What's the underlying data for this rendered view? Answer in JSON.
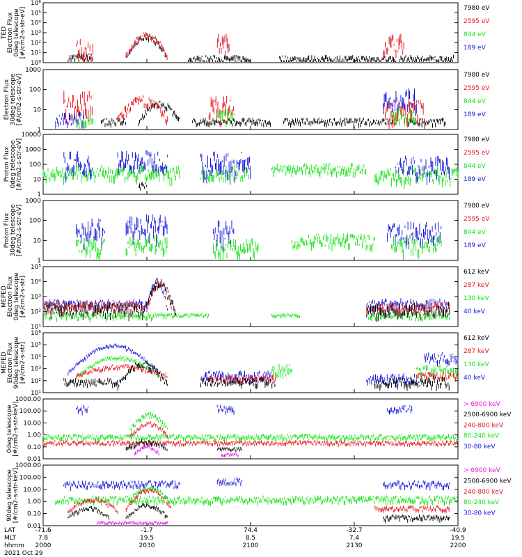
{
  "colors": {
    "black": "#000000",
    "red": "#e8141c",
    "green": "#14e414",
    "blue": "#1414e0",
    "magenta": "#e014e0"
  },
  "x_axis": {
    "row_labels": [
      "LAT",
      "MLT",
      "hhmm"
    ],
    "ticks": [
      {
        "lat": "-71.6",
        "mlt": "7.8",
        "time": "2000"
      },
      {
        "lat": "-1.7",
        "mlt": "19.5",
        "time": "2030"
      },
      {
        "lat": "74.4",
        "mlt": "8.5",
        "time": "2100"
      },
      {
        "lat": "-32.7",
        "mlt": "7.4",
        "time": "2130"
      },
      {
        "lat": "-40.9",
        "mlt": "19.5",
        "time": "2200"
      }
    ],
    "date": "2021 Oct 29"
  },
  "chart_data": [
    {
      "type": "line",
      "ylabel": [
        "TED",
        "Electron Flux",
        "0deg telescope",
        "[#/cm2-s-str-eV]"
      ],
      "log": true,
      "ylim": [
        1,
        1000000
      ],
      "ticklabels": [
        "10⁰",
        "10¹",
        "10²",
        "10³",
        "10⁴",
        "10⁵",
        "10⁶"
      ],
      "legend": [
        {
          "name": "7980 eV",
          "color": "black"
        },
        {
          "name": "2595 eV",
          "color": "red"
        },
        {
          "name": "844 eV",
          "color": "green"
        },
        {
          "name": "189 eV",
          "color": "blue"
        }
      ]
    },
    {
      "type": "line",
      "ylabel": [
        "Electron Flux",
        "30deg telescope",
        "[#/cm2-s-str-eV]"
      ],
      "log": true,
      "ylim": [
        1,
        1000
      ],
      "ticklabels": [
        "1",
        "10",
        "100",
        "1000"
      ],
      "legend": [
        {
          "name": "7980 eV",
          "color": "black"
        },
        {
          "name": "2595 eV",
          "color": "red"
        },
        {
          "name": "844 eV",
          "color": "green"
        },
        {
          "name": "189 eV",
          "color": "blue"
        }
      ]
    },
    {
      "type": "line",
      "ylabel": [
        "Proton Flux",
        "0deg telescope",
        "[#/cm2-s-str-eV]"
      ],
      "log": true,
      "ylim": [
        1,
        10000
      ],
      "ticklabels": [
        "1",
        "10",
        "100",
        "1000",
        "10000"
      ],
      "legend": [
        {
          "name": "7980 eV",
          "color": "black"
        },
        {
          "name": "2595 eV",
          "color": "red"
        },
        {
          "name": "844 eV",
          "color": "green"
        },
        {
          "name": "189 eV",
          "color": "blue"
        }
      ]
    },
    {
      "type": "line",
      "ylabel": [
        "Proton Flux",
        "30deg telescope",
        "[#/cm2-s-str-eV]"
      ],
      "log": true,
      "ylim": [
        1,
        1000
      ],
      "ticklabels": [
        "1",
        "10",
        "100",
        "1000"
      ],
      "legend": [
        {
          "name": "7980 eV",
          "color": "black"
        },
        {
          "name": "2595 eV",
          "color": "red"
        },
        {
          "name": "844 eV",
          "color": "green"
        },
        {
          "name": "189 eV",
          "color": "blue"
        }
      ]
    },
    {
      "type": "line",
      "ylabel": [
        "MEPED",
        "Electron Flux",
        "0deg telescope",
        "[#/cm2-s-str]"
      ],
      "log": true,
      "ylim": [
        10,
        100000
      ],
      "ticklabels": [
        "10¹",
        "10²",
        "10³",
        "10⁴",
        "10⁵"
      ],
      "legend": [
        {
          "name": "612 keV",
          "color": "black"
        },
        {
          "name": "287 keV",
          "color": "red"
        },
        {
          "name": "130 keV",
          "color": "green"
        },
        {
          "name": "40 keV",
          "color": "blue"
        }
      ]
    },
    {
      "type": "line",
      "ylabel": [
        "MEPED",
        "Electron Flux",
        "90deg telescope",
        "[#/cm2-s-str]"
      ],
      "log": true,
      "ylim": [
        10,
        1000000
      ],
      "ticklabels": [
        "10¹",
        "10²",
        "10³",
        "10⁴",
        "10⁵",
        "10⁶"
      ],
      "legend": [
        {
          "name": "612 keV",
          "color": "black"
        },
        {
          "name": "287 keV",
          "color": "red"
        },
        {
          "name": "130 keV",
          "color": "green"
        },
        {
          "name": "40 keV",
          "color": "blue"
        }
      ]
    },
    {
      "type": "line",
      "ylabel": [
        "0deg telescope",
        "[#/cm2-s-str-keV]"
      ],
      "log": true,
      "ylim": [
        0.01,
        1000
      ],
      "ticklabels": [
        "0.01",
        "0.10",
        "1.00",
        "10.00",
        "100.00",
        "1000.00"
      ],
      "legend": [
        {
          "name": "> 6900 keV",
          "color": "magenta"
        },
        {
          "name": "2500-6900 keV",
          "color": "black"
        },
        {
          "name": "240-800 keV",
          "color": "red"
        },
        {
          "name": "80-240 keV",
          "color": "green"
        },
        {
          "name": "30-80 keV",
          "color": "blue"
        }
      ]
    },
    {
      "type": "line",
      "ylabel": [
        "90deg telescope",
        "[#/cm2-s-str-keV]"
      ],
      "log": true,
      "ylim": [
        0.01,
        1000
      ],
      "ticklabels": [
        "0.01",
        "0.10",
        "1.00",
        "10.00",
        "100.00",
        "1000.00"
      ],
      "legend": [
        {
          "name": "> 6900 keV",
          "color": "magenta"
        },
        {
          "name": "2500-6900 keV",
          "color": "black"
        },
        {
          "name": "240-800 keV",
          "color": "red"
        },
        {
          "name": "80-240 keV",
          "color": "green"
        },
        {
          "name": "30-80 keV",
          "color": "blue"
        }
      ]
    }
  ]
}
